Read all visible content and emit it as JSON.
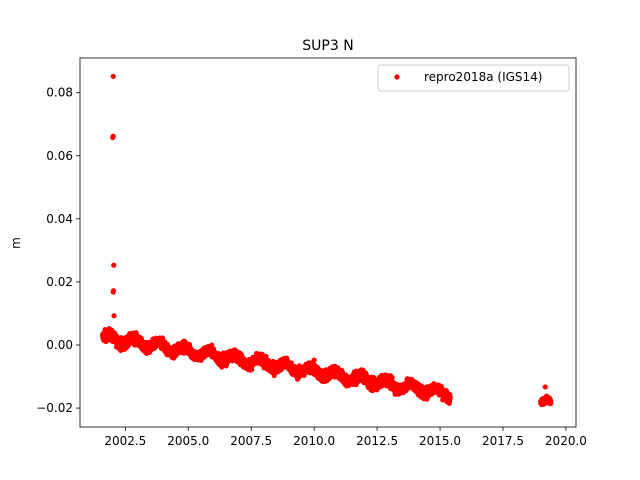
{
  "chart_data": {
    "type": "scatter",
    "title": "SUP3 N",
    "xlabel": "",
    "ylabel": "m",
    "xlim": [
      2000.7,
      2020.4
    ],
    "ylim": [
      -0.026,
      0.091
    ],
    "x_ticks": [
      2002.5,
      2005.0,
      2007.5,
      2010.0,
      2012.5,
      2015.0,
      2017.5,
      2020.0
    ],
    "x_tick_labels": [
      "2002.5",
      "2005.0",
      "2007.5",
      "2010.0",
      "2012.5",
      "2015.0",
      "2017.5",
      "2020.0"
    ],
    "y_ticks": [
      -0.02,
      0.0,
      0.02,
      0.04,
      0.06,
      0.08
    ],
    "y_tick_labels": [
      "−0.02",
      "0.00",
      "0.02",
      "0.04",
      "0.06",
      "0.08"
    ],
    "legend": {
      "position": "upper right",
      "entries": [
        "repro2018a (IGS14)"
      ]
    },
    "grid": false,
    "series": [
      {
        "name": "repro2018a (IGS14)",
        "color": "#ff0000",
        "marker": "circle",
        "points": [
          [
            2002.02,
            0.0852
          ],
          [
            2002.02,
            0.0662
          ],
          [
            2002.0,
            0.0658
          ],
          [
            2002.04,
            0.0253
          ],
          [
            2002.03,
            0.0172
          ],
          [
            2002.02,
            0.0168
          ],
          [
            2002.05,
            0.0093
          ],
          [
            2010.0,
            -0.0048
          ],
          [
            2019.18,
            -0.0133
          ]
        ],
        "trend_segments": [
          {
            "x_start": 2001.6,
            "x_end": 2015.4,
            "y_start": 0.0025,
            "y_end": -0.0155,
            "spread": 0.0032
          },
          {
            "x_start": 2019.0,
            "x_end": 2019.4,
            "y_start": -0.0185,
            "y_end": -0.0185,
            "spread": 0.0018
          }
        ]
      }
    ]
  }
}
